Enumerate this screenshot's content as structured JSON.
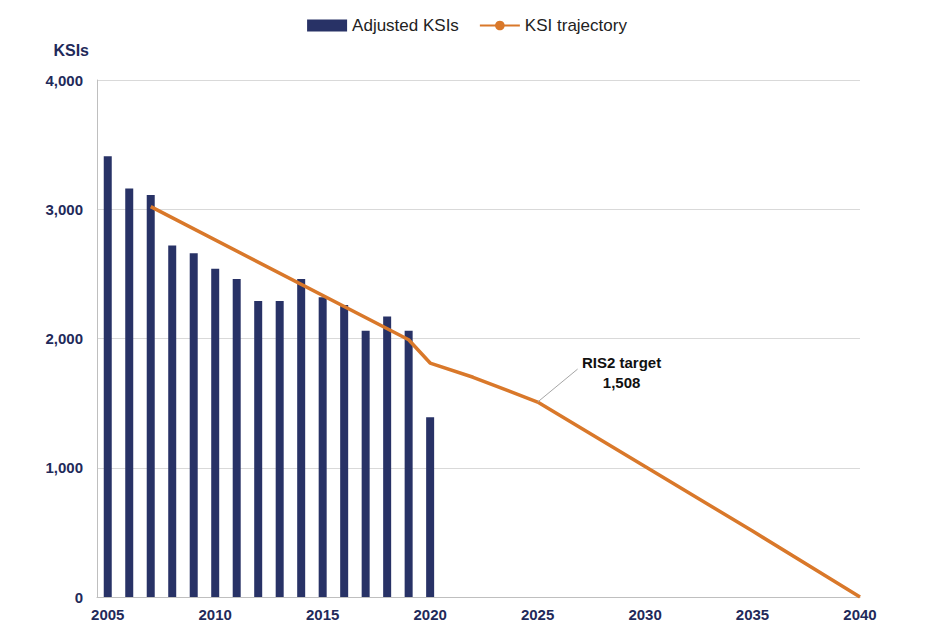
{
  "chart_data": {
    "type": "bar",
    "ylabel": "KSIs",
    "xlim": [
      2004.5,
      2040
    ],
    "xticks": [
      2005,
      2010,
      2015,
      2020,
      2025,
      2030,
      2035,
      2040
    ],
    "ylim": [
      0,
      4000
    ],
    "yticks": [
      0,
      {
        "value": 1000,
        "label": "1,000"
      },
      {
        "value": 2000,
        "label": "2,000"
      },
      {
        "value": 3000,
        "label": "3,000"
      },
      {
        "value": 4000,
        "label": "4,000"
      }
    ],
    "grid": true,
    "legend": "top",
    "series": [
      {
        "name": "Adjusted KSIs",
        "type": "bar",
        "color": "#283266",
        "x": [
          2005,
          2006,
          2007,
          2008,
          2009,
          2010,
          2011,
          2012,
          2013,
          2014,
          2015,
          2016,
          2017,
          2018,
          2019,
          2020
        ],
        "values": [
          3410,
          3160,
          3110,
          2720,
          2660,
          2540,
          2460,
          2290,
          2290,
          2460,
          2320,
          2260,
          2060,
          2170,
          2060,
          1390
        ]
      },
      {
        "name": "KSI trajectory",
        "type": "line",
        "color": "#d9782a",
        "x": [
          2007,
          2019,
          2020,
          2022,
          2025,
          2030,
          2033,
          2035,
          2040
        ],
        "values": [
          3020,
          1990,
          1810,
          1700,
          1508,
          1010,
          710,
          510,
          0
        ]
      }
    ],
    "annotations": [
      {
        "text": [
          "RIS2 target",
          "1,508"
        ],
        "x": 2025,
        "y": 1508
      }
    ]
  }
}
